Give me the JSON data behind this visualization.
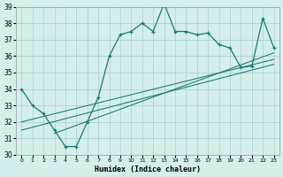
{
  "xlabel": "Humidex (Indice chaleur)",
  "x_values": [
    0,
    1,
    2,
    3,
    4,
    5,
    6,
    7,
    8,
    9,
    10,
    11,
    12,
    13,
    14,
    15,
    16,
    17,
    18,
    19,
    20,
    21,
    22,
    23
  ],
  "main_line": [
    34.0,
    33.0,
    32.5,
    31.5,
    30.5,
    30.5,
    32.0,
    33.5,
    36.0,
    37.3,
    37.5,
    38.0,
    37.5,
    39.2,
    37.5,
    37.5,
    37.3,
    37.4,
    36.7,
    36.5,
    35.3,
    35.4,
    38.3,
    36.5
  ],
  "reg_line1": [
    [
      0,
      31.5
    ],
    [
      23,
      35.5
    ]
  ],
  "reg_line2": [
    [
      0,
      32.0
    ],
    [
      23,
      35.8
    ]
  ],
  "reg_line3": [
    [
      3,
      31.3
    ],
    [
      23,
      36.2
    ]
  ],
  "ylim": [
    30,
    39
  ],
  "xlim": [
    -0.5,
    23.5
  ],
  "yticks": [
    30,
    31,
    32,
    33,
    34,
    35,
    36,
    37,
    38,
    39
  ],
  "xticks": [
    0,
    1,
    2,
    3,
    4,
    5,
    6,
    7,
    8,
    9,
    10,
    11,
    12,
    13,
    14,
    15,
    16,
    17,
    18,
    19,
    20,
    21,
    22,
    23
  ],
  "line_color": "#1a7a6e",
  "bg_color": "#d4eeeb",
  "grid_color": "#a8ceca"
}
